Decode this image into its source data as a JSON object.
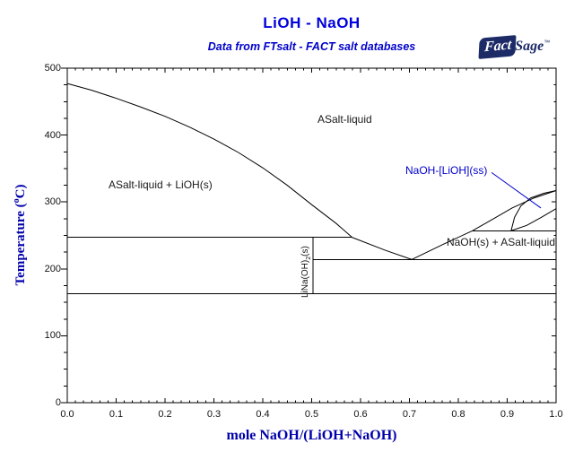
{
  "header": {
    "title": "LiOH - NaOH",
    "subtitle": "Data from FTsalt - FACT salt databases"
  },
  "logo": {
    "fact": "Fact",
    "sage": "Sage",
    "tm": "™"
  },
  "chart_data": {
    "type": "line",
    "title": "LiOH - NaOH",
    "subtitle": "Data from FTsalt - FACT salt databases",
    "xlabel": "mole NaOH/(LiOH+NaOH)",
    "ylabel": "Temperature (°C)",
    "ylabel_parts": {
      "pre": "Temperature (",
      "sup": "o",
      "post": "C)"
    },
    "xlim": [
      0,
      1
    ],
    "ylim": [
      0,
      500
    ],
    "grid": false,
    "x_ticks": [
      "0.0",
      "0.1",
      "0.2",
      "0.3",
      "0.4",
      "0.5",
      "0.6",
      "0.7",
      "0.8",
      "0.9",
      "1.0"
    ],
    "y_ticks": [
      "0",
      "100",
      "200",
      "300",
      "400",
      "500"
    ],
    "x_minor_divisions": 6,
    "y_minor_step": 25,
    "curves": [
      {
        "name": "liquidus-lioh-branch",
        "color": "#000000",
        "points": [
          [
            0,
            477
          ],
          [
            0.05,
            467
          ],
          [
            0.1,
            455
          ],
          [
            0.15,
            442
          ],
          [
            0.2,
            428
          ],
          [
            0.25,
            412
          ],
          [
            0.3,
            394
          ],
          [
            0.35,
            374
          ],
          [
            0.4,
            351
          ],
          [
            0.45,
            325
          ],
          [
            0.5,
            296
          ],
          [
            0.55,
            268
          ],
          [
            0.583,
            247
          ]
        ]
      },
      {
        "name": "liquidus-center-branch",
        "color": "#000000",
        "points": [
          [
            0.583,
            247
          ],
          [
            0.65,
            228
          ],
          [
            0.705,
            214
          ]
        ]
      },
      {
        "name": "liquidus-naoh-branch",
        "color": "#000000",
        "points": [
          [
            0.705,
            214
          ],
          [
            0.77,
            237
          ],
          [
            0.829,
            257
          ],
          [
            0.87,
            274
          ],
          [
            0.91,
            291
          ],
          [
            0.955,
            306
          ],
          [
            1.0,
            317
          ]
        ]
      },
      {
        "name": "peritectic-line-247C",
        "color": "#000000",
        "points": [
          [
            0,
            247
          ],
          [
            0.583,
            247
          ]
        ]
      },
      {
        "name": "ss-formation-line-257C",
        "color": "#000000",
        "points": [
          [
            0.829,
            257
          ],
          [
            1.0,
            257
          ]
        ]
      },
      {
        "name": "eutectic-line-214C",
        "color": "#000000",
        "points": [
          [
            0.503,
            214
          ],
          [
            1.0,
            214
          ]
        ]
      },
      {
        "name": "lower-transition-line-163C",
        "color": "#000000",
        "points": [
          [
            0,
            163
          ],
          [
            1.0,
            163
          ]
        ]
      },
      {
        "name": "linaoh2-compound-line",
        "color": "#000000",
        "points": [
          [
            0.503,
            247
          ],
          [
            0.503,
            163
          ]
        ]
      },
      {
        "name": "ss-solidus",
        "color": "#000000",
        "points": [
          [
            0.908,
            257
          ],
          [
            0.915,
            277
          ],
          [
            0.928,
            294
          ],
          [
            0.948,
            306
          ],
          [
            0.975,
            313
          ],
          [
            1.0,
            317
          ]
        ]
      },
      {
        "name": "ss-solvus",
        "color": "#000000",
        "points": [
          [
            0.908,
            257
          ],
          [
            0.94,
            265
          ],
          [
            0.97,
            277
          ],
          [
            1.0,
            290
          ]
        ]
      },
      {
        "name": "ss-label-leader-line",
        "color": "#0000cc",
        "points": [
          [
            0.868,
            344
          ],
          [
            0.969,
            291
          ]
        ]
      }
    ],
    "region_labels": [
      {
        "text": "ASalt-liquid"
      },
      {
        "text": "ASalt-liquid + LiOH(s)"
      },
      {
        "text": "NaOH(s) + ASalt-liquid"
      },
      {
        "text": "NaOH-[LiOH](ss)"
      },
      {
        "text": "LiNa(OH)2(s)"
      }
    ],
    "compound_label_parts": {
      "pre": "LiNa(OH)",
      "sub": "2",
      "post": "(s)"
    },
    "special_points": {
      "lioh_melting_c": 477,
      "naoh_melting_c": 317,
      "eutectic_x_naoh": 0.705,
      "eutectic_t_c": 214,
      "peritectic_liquid_x": 0.583,
      "peritectic_t_c": 247,
      "ss_boundary_x": 0.908,
      "ss_formation_t_c": 257,
      "lower_transition_t_c": 163
    }
  }
}
